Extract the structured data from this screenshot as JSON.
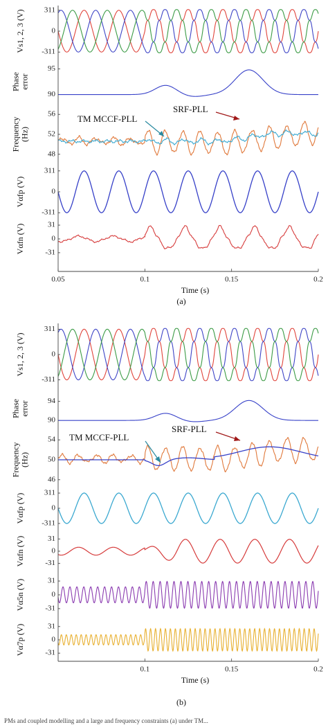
{
  "figure_a": {
    "label": "(a)",
    "xlabel": "Time (s)",
    "x_ticks": [
      "0.05",
      "0.1",
      "0.15",
      "0.2"
    ],
    "annotations": {
      "tm": "TM MCCF-PLL",
      "srf": "SRF-PLL"
    },
    "panels": [
      {
        "ylabel": [
          "Vs1, 2, 3 (V)"
        ],
        "y_ticks": [
          "311",
          "0",
          "-311"
        ]
      },
      {
        "ylabel": [
          "Phase",
          "error"
        ],
        "y_ticks": [
          "95",
          "90"
        ]
      },
      {
        "ylabel": [
          "Frequency",
          "(Hz)"
        ],
        "y_ticks": [
          "56",
          "52",
          "48"
        ]
      },
      {
        "ylabel": [
          "Vαfp (V)"
        ],
        "y_ticks": [
          "311",
          "0",
          "-311"
        ]
      },
      {
        "ylabel": [
          "Vαfn (V)"
        ],
        "y_ticks": [
          "31",
          "0",
          "-31"
        ]
      }
    ]
  },
  "figure_b": {
    "label": "(b)",
    "xlabel": "Time (s)",
    "x_ticks": [
      "0.1",
      "0.15",
      "0.2"
    ],
    "annotations": {
      "tm": "TM MCCF-PLL",
      "srf": "SRF-PLL"
    },
    "panels": [
      {
        "ylabel": [
          "Vs1, 2, 3 (V)"
        ],
        "y_ticks": [
          "311",
          "0",
          "-311"
        ]
      },
      {
        "ylabel": [
          "Phase",
          "error"
        ],
        "y_ticks": [
          "94",
          "90"
        ]
      },
      {
        "ylabel": [
          "Frequency",
          "(Hz)"
        ],
        "y_ticks": [
          "54",
          "50",
          "46"
        ]
      },
      {
        "ylabel": [
          "Vαfp (V)"
        ],
        "y_ticks": [
          "311",
          "0",
          "-311"
        ]
      },
      {
        "ylabel": [
          "Vαfn (V)"
        ],
        "y_ticks": [
          "31",
          "0",
          "-31"
        ]
      },
      {
        "ylabel": [
          "Vα5n (V)"
        ],
        "y_ticks": [
          "31",
          "0",
          "-31"
        ]
      },
      {
        "ylabel": [
          "Vα7p (V)"
        ],
        "y_ticks": [
          "31",
          "0",
          "-31"
        ]
      }
    ]
  },
  "colors": {
    "phase_a": "#e0433a",
    "phase_b": "#3d44c6",
    "phase_c": "#3a9a44",
    "blue": "#3640c8",
    "orange": "#e0783a",
    "light_blue": "#3aa8d0",
    "red": "#d63a3a",
    "purple": "#8a3ab0",
    "yellow": "#e8b030",
    "arrow_teal": "#2a8aa0",
    "arrow_red": "#a01818"
  },
  "caption": "PMs and coupled modelling and a large and frequency constraints (a) under TM..."
}
